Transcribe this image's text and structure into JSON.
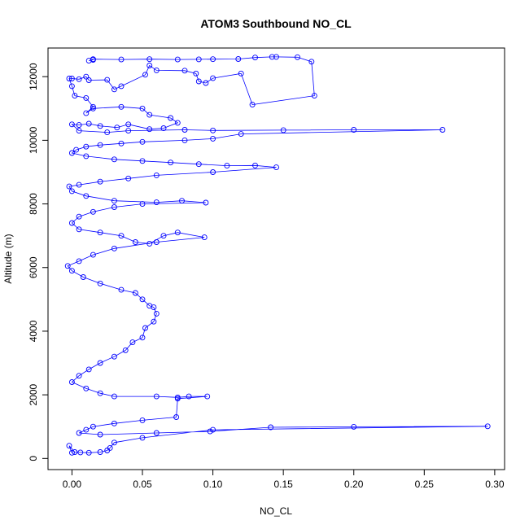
{
  "chart_data": {
    "type": "line",
    "title": "ATOM3 Southbound NO_CL",
    "xlabel": "NO_CL",
    "ylabel": "Altitude (m)",
    "xlim": [
      -0.017,
      0.307
    ],
    "ylim": [
      -350,
      12900
    ],
    "x_ticks": [
      0.0,
      0.05,
      0.1,
      0.15,
      0.2,
      0.25,
      0.3
    ],
    "x_tick_labels": [
      "0.00",
      "0.05",
      "0.10",
      "0.15",
      "0.20",
      "0.25",
      "0.30"
    ],
    "y_ticks": [
      0,
      2000,
      4000,
      6000,
      8000,
      10000,
      12000
    ],
    "y_tick_labels": [
      "0",
      "2000",
      "4000",
      "6000",
      "8000",
      "10000",
      "12000"
    ],
    "grid": false,
    "legend": "none",
    "series_color": "#0000ff",
    "series": [
      {
        "points": [
          [
            0.015,
            12530
          ],
          [
            0.012,
            12500
          ],
          [
            0.015,
            12550
          ],
          [
            0.035,
            12540
          ],
          [
            0.055,
            12550
          ],
          [
            0.075,
            12540
          ],
          [
            0.09,
            12545
          ],
          [
            0.1,
            12550
          ],
          [
            0.118,
            12555
          ],
          [
            0.13,
            12600
          ],
          [
            0.142,
            12620
          ],
          [
            0.145,
            12620
          ],
          [
            0.16,
            12610
          ],
          [
            0.17,
            12470
          ],
          [
            0.172,
            11400
          ],
          [
            0.128,
            11120
          ],
          [
            0.12,
            12100
          ],
          [
            0.1,
            11950
          ],
          [
            0.095,
            11800
          ],
          [
            0.09,
            11850
          ],
          [
            0.088,
            12100
          ],
          [
            0.08,
            12190
          ],
          [
            0.06,
            12200
          ],
          [
            0.055,
            12350
          ],
          [
            0.052,
            12060
          ],
          [
            0.035,
            11700
          ],
          [
            0.03,
            11600
          ],
          [
            0.025,
            11900
          ],
          [
            0.012,
            11890
          ],
          [
            0.01,
            12000
          ],
          [
            0.005,
            11920
          ],
          [
            0.0,
            11940
          ],
          [
            -0.002,
            11940
          ],
          [
            0.0,
            11700
          ],
          [
            0.002,
            11400
          ],
          [
            0.01,
            11330
          ],
          [
            0.015,
            11050
          ],
          [
            0.01,
            10850
          ],
          [
            0.015,
            11000
          ],
          [
            0.035,
            11050
          ],
          [
            0.05,
            11000
          ],
          [
            0.055,
            10800
          ],
          [
            0.07,
            10700
          ],
          [
            0.075,
            10550
          ],
          [
            0.065,
            10380
          ],
          [
            0.055,
            10350
          ],
          [
            0.04,
            10500
          ],
          [
            0.032,
            10400
          ],
          [
            0.02,
            10450
          ],
          [
            0.012,
            10520
          ],
          [
            0.005,
            10480
          ],
          [
            0.0,
            10500
          ],
          [
            0.005,
            10300
          ],
          [
            0.025,
            10250
          ],
          [
            0.04,
            10300
          ],
          [
            0.08,
            10330
          ],
          [
            0.1,
            10310
          ],
          [
            0.15,
            10320
          ],
          [
            0.2,
            10330
          ],
          [
            0.263,
            10330
          ],
          [
            0.12,
            10200
          ],
          [
            0.1,
            10050
          ],
          [
            0.08,
            10000
          ],
          [
            0.05,
            9950
          ],
          [
            0.035,
            9900
          ],
          [
            0.02,
            9850
          ],
          [
            0.01,
            9800
          ],
          [
            0.003,
            9700
          ],
          [
            0.0,
            9600
          ],
          [
            0.01,
            9500
          ],
          [
            0.03,
            9400
          ],
          [
            0.05,
            9350
          ],
          [
            0.07,
            9300
          ],
          [
            0.09,
            9250
          ],
          [
            0.11,
            9200
          ],
          [
            0.13,
            9210
          ],
          [
            0.145,
            9150
          ],
          [
            0.1,
            9000
          ],
          [
            0.06,
            8900
          ],
          [
            0.04,
            8800
          ],
          [
            0.02,
            8700
          ],
          [
            0.005,
            8600
          ],
          [
            -0.002,
            8550
          ],
          [
            0.0,
            8400
          ],
          [
            0.01,
            8250
          ],
          [
            0.03,
            8100
          ],
          [
            0.06,
            8050
          ],
          [
            0.078,
            8100
          ],
          [
            0.095,
            8040
          ],
          [
            0.05,
            8000
          ],
          [
            0.03,
            7900
          ],
          [
            0.015,
            7750
          ],
          [
            0.005,
            7600
          ],
          [
            0.0,
            7400
          ],
          [
            0.005,
            7200
          ],
          [
            0.02,
            7100
          ],
          [
            0.035,
            7000
          ],
          [
            0.045,
            6800
          ],
          [
            0.055,
            6750
          ],
          [
            0.065,
            7000
          ],
          [
            0.075,
            7100
          ],
          [
            0.094,
            6950
          ],
          [
            0.06,
            6800
          ],
          [
            0.03,
            6600
          ],
          [
            0.015,
            6400
          ],
          [
            0.005,
            6200
          ],
          [
            -0.003,
            6050
          ],
          [
            0.0,
            5900
          ],
          [
            0.008,
            5700
          ],
          [
            0.02,
            5500
          ],
          [
            0.035,
            5300
          ],
          [
            0.045,
            5200
          ],
          [
            0.05,
            5000
          ],
          [
            0.055,
            4800
          ],
          [
            0.058,
            4750
          ],
          [
            0.06,
            4550
          ],
          [
            0.058,
            4300
          ],
          [
            0.052,
            4100
          ],
          [
            0.05,
            3800
          ],
          [
            0.043,
            3650
          ],
          [
            0.038,
            3400
          ],
          [
            0.03,
            3200
          ],
          [
            0.02,
            3000
          ],
          [
            0.012,
            2800
          ],
          [
            0.005,
            2600
          ],
          [
            0.0,
            2400
          ],
          [
            0.01,
            2200
          ],
          [
            0.02,
            2050
          ],
          [
            0.03,
            1950
          ],
          [
            0.06,
            1950
          ],
          [
            0.075,
            1920
          ],
          [
            0.083,
            1950
          ],
          [
            0.096,
            1950
          ],
          [
            0.075,
            1880
          ],
          [
            0.074,
            1300
          ],
          [
            0.05,
            1200
          ],
          [
            0.03,
            1100
          ],
          [
            0.015,
            1000
          ],
          [
            0.01,
            900
          ],
          [
            0.005,
            800
          ],
          [
            0.02,
            750
          ],
          [
            0.06,
            800
          ],
          [
            0.098,
            850
          ],
          [
            0.141,
            980
          ],
          [
            0.2,
            995
          ],
          [
            0.295,
            1010
          ],
          [
            0.1,
            900
          ],
          [
            0.05,
            650
          ],
          [
            0.03,
            500
          ],
          [
            0.027,
            330
          ],
          [
            0.025,
            250
          ],
          [
            0.02,
            200
          ],
          [
            0.012,
            180
          ],
          [
            0.006,
            190
          ],
          [
            0.002,
            200
          ],
          [
            -0.002,
            400
          ],
          [
            0.0,
            180
          ]
        ]
      }
    ]
  }
}
